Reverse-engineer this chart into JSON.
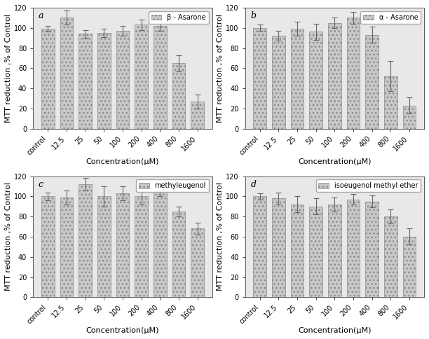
{
  "categories": [
    "control",
    "12.5",
    "25",
    "50",
    "100",
    "200",
    "400",
    "800",
    "1600"
  ],
  "subplots": [
    {
      "label": "a",
      "legend": "β - Asarone",
      "values": [
        99,
        110,
        94,
        95,
        97,
        103,
        102,
        65,
        27
      ],
      "errors": [
        3,
        7,
        4,
        4,
        5,
        5,
        5,
        8,
        7
      ]
    },
    {
      "label": "b",
      "legend": "α - Asarone",
      "values": [
        100,
        92,
        99,
        96,
        105,
        110,
        93,
        52,
        23
      ],
      "errors": [
        3,
        5,
        7,
        8,
        5,
        6,
        8,
        15,
        8
      ]
    },
    {
      "label": "c",
      "legend": "methyleugenol",
      "values": [
        100,
        99,
        112,
        100,
        103,
        100,
        105,
        85,
        68
      ],
      "errors": [
        4,
        7,
        6,
        10,
        7,
        8,
        5,
        5,
        6
      ]
    },
    {
      "label": "d",
      "legend": "isoeugenol methyl ether",
      "values": [
        100,
        98,
        92,
        90,
        92,
        97,
        95,
        80,
        60
      ],
      "errors": [
        3,
        6,
        8,
        8,
        7,
        5,
        6,
        7,
        8
      ]
    }
  ],
  "ylabel": "MTT reduction ,% of Control",
  "xlabel": "Concentration(μM)",
  "ylim": [
    0,
    120
  ],
  "yticks": [
    0,
    20,
    40,
    60,
    80,
    100,
    120
  ],
  "bar_color": "#c8c8c8",
  "bar_hatch": "...",
  "bar_edgecolor": "#888888",
  "background_color": "#e8e8e8",
  "figure_bg": "#ffffff",
  "fontsize_axis_label": 8,
  "fontsize_tick": 7,
  "fontsize_legend": 7,
  "fontsize_label": 9
}
